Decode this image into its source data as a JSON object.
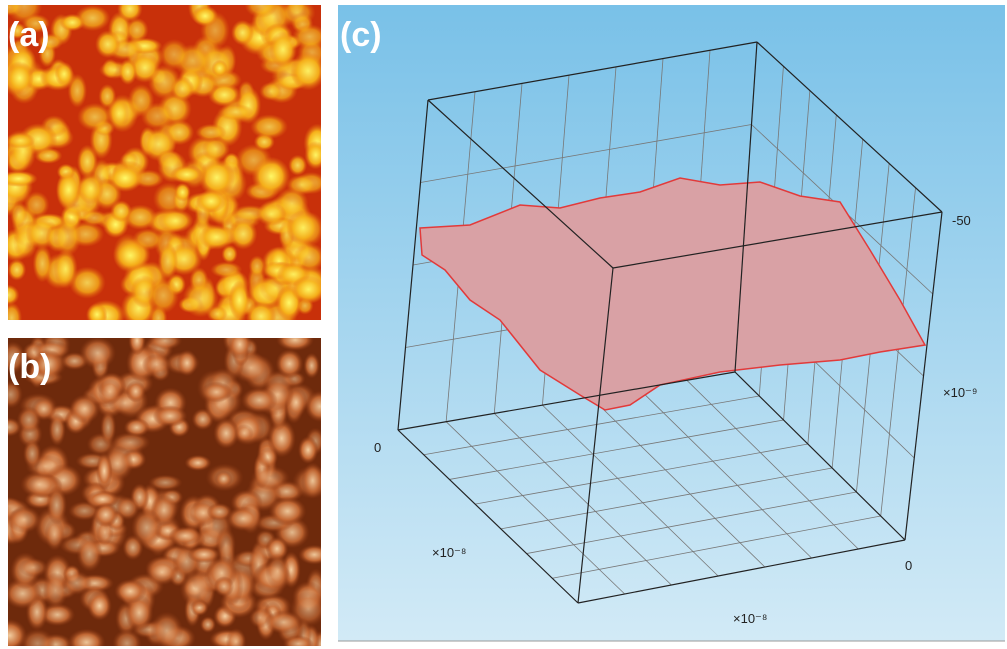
{
  "panels": [
    {
      "label": "(a)"
    },
    {
      "label": "(b)"
    },
    {
      "label": "(c)",
      "axis_labels": [
        "-50",
        "×10⁻⁹",
        "0",
        "×10⁻⁸",
        "0",
        "×10⁻⁸"
      ]
    }
  ]
}
